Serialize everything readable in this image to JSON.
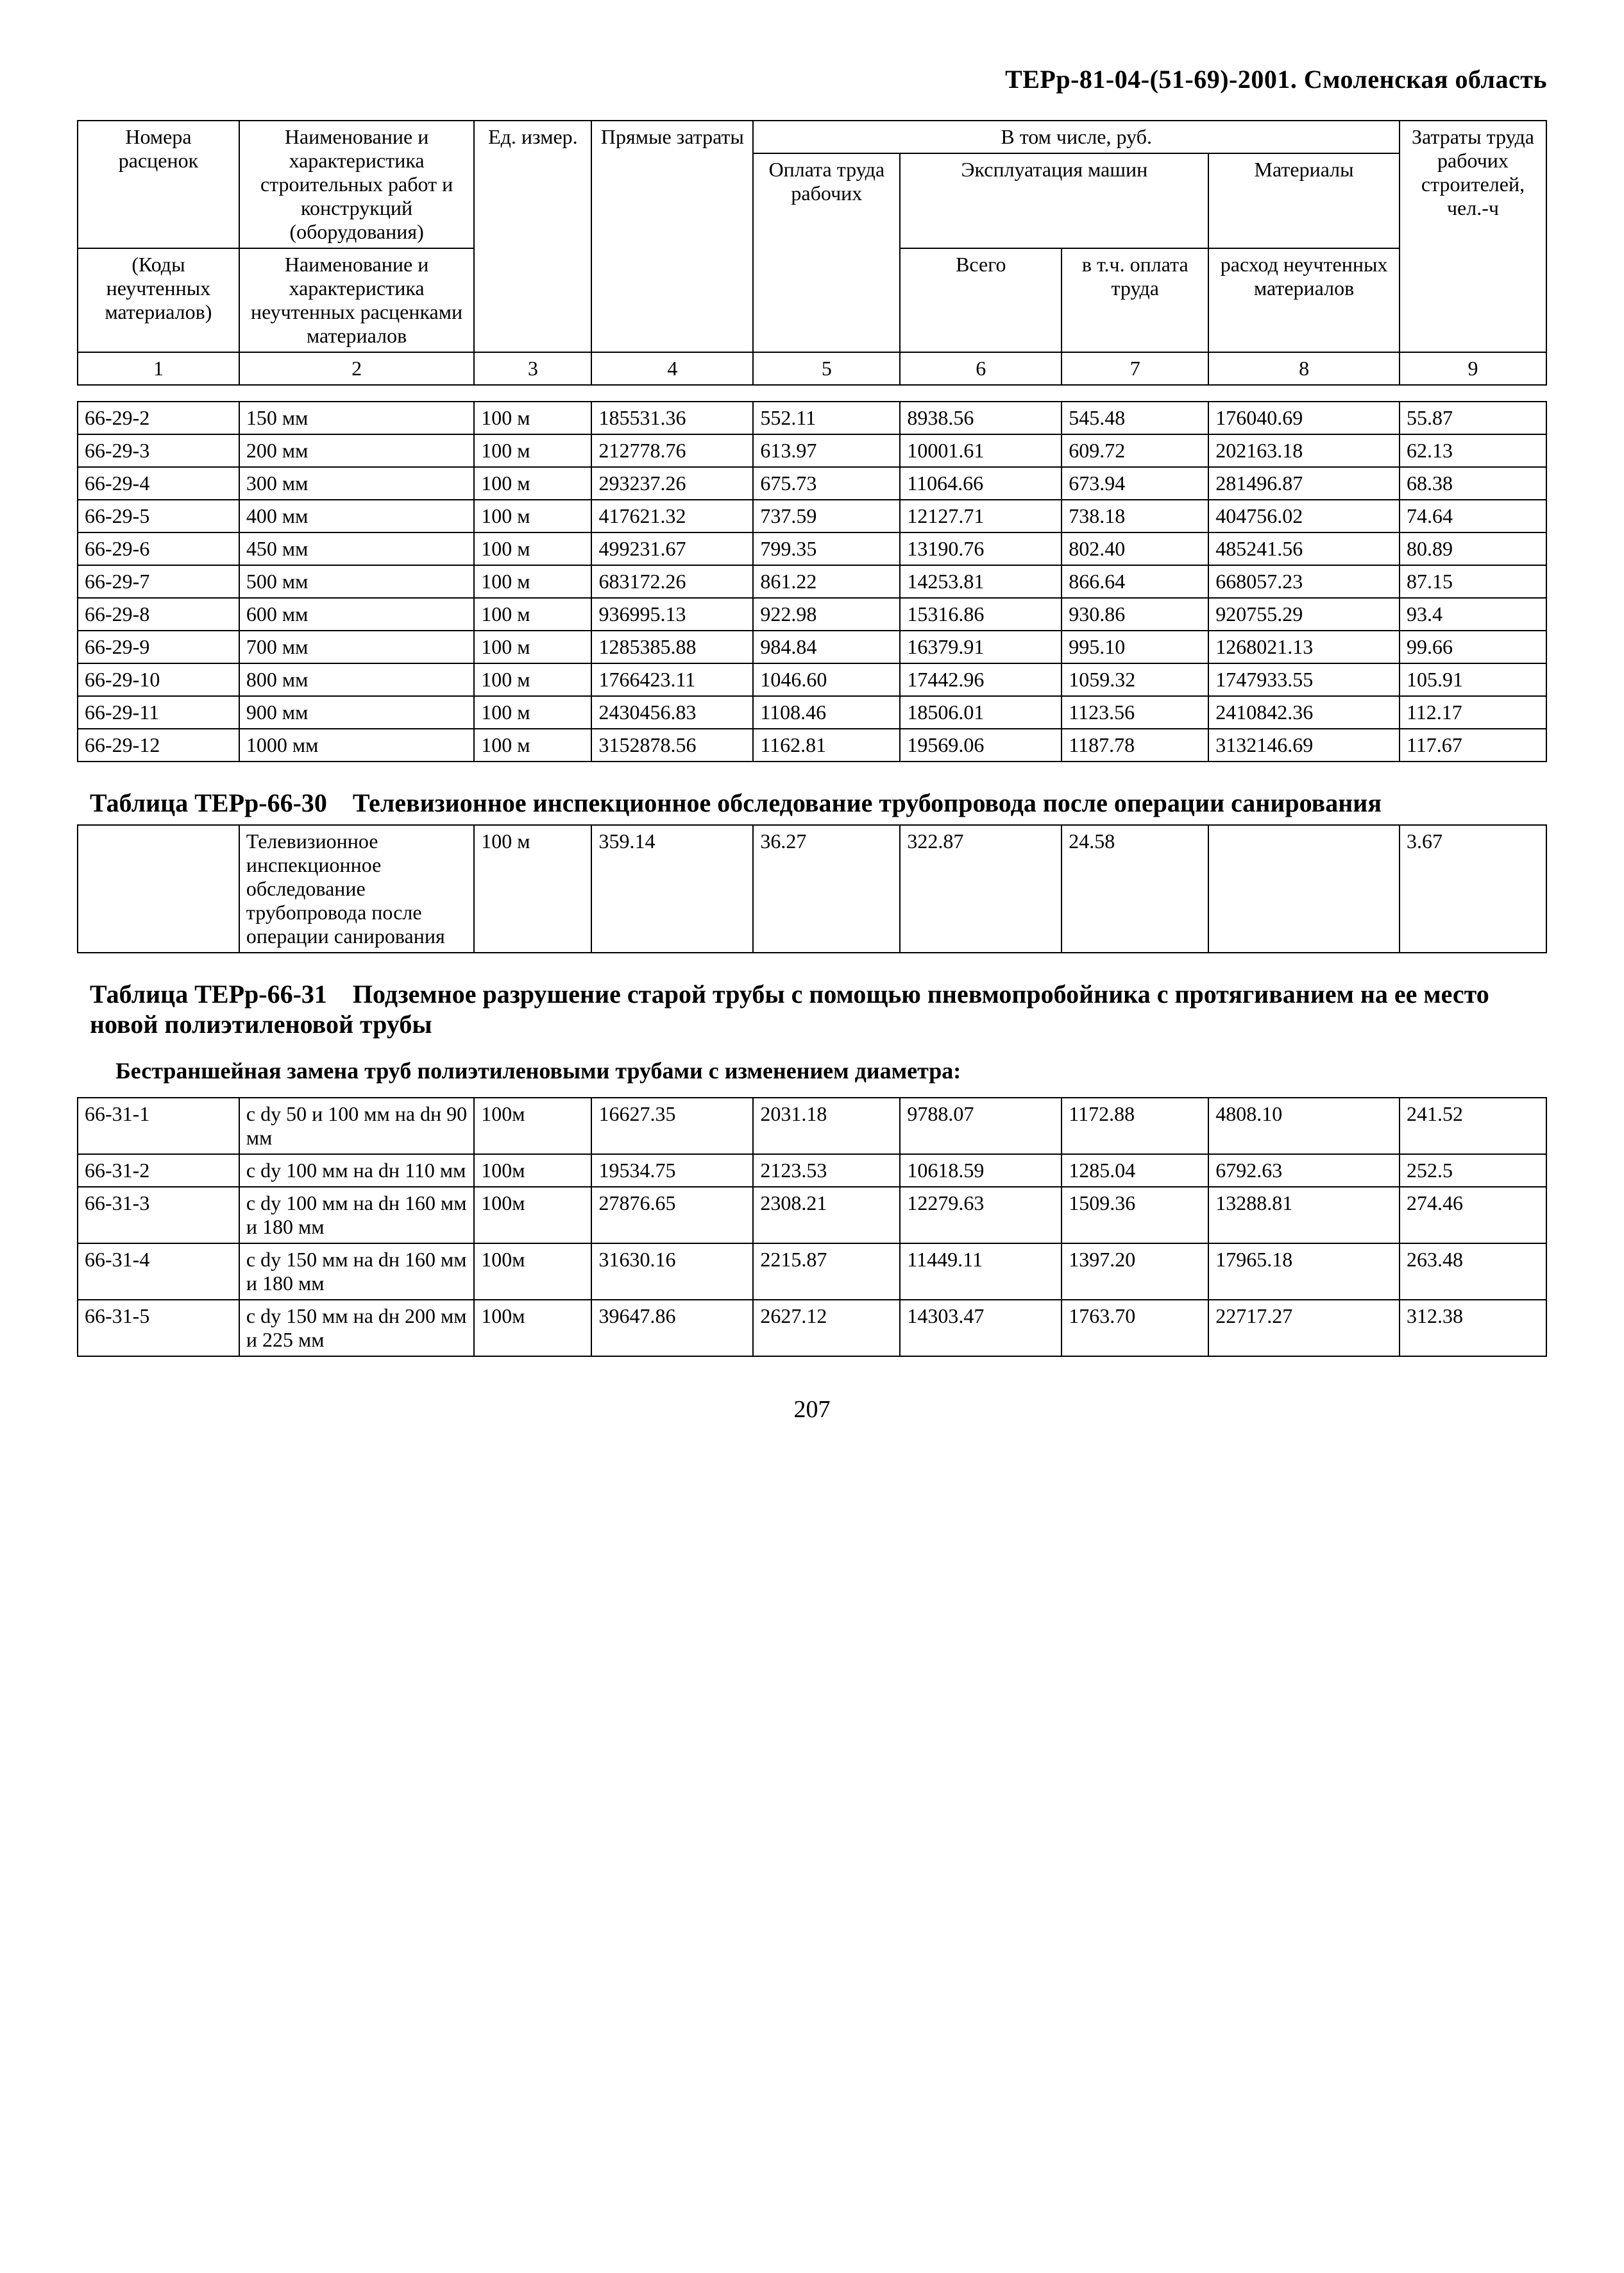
{
  "doc_title": "ТЕРр-81-04-(51-69)-2001. Смоленская область",
  "page_number": "207",
  "header_table": {
    "r1": {
      "col1": "Номера расценок",
      "col2": "Наименование и характеристика строительных работ и конструкций (оборудования)",
      "col3": "Ед. измер.",
      "col4": "Прямые затраты",
      "col5to8": "В том числе, руб.",
      "col9": "Затраты труда рабочих строителей, чел.-ч"
    },
    "r2": {
      "col5": "Оплата труда рабочих",
      "col6to7": "Эксплуатация машин",
      "col8": "Материалы"
    },
    "r3": {
      "col1": "(Коды неучтенных материалов)",
      "col2": "Наименование и характеристика неучтенных расценками материалов",
      "col6": "Всего",
      "col7": "в т.ч. оплата труда",
      "col8": "расход неучтенных материалов"
    },
    "nums": [
      "1",
      "2",
      "3",
      "4",
      "5",
      "6",
      "7",
      "8",
      "9"
    ]
  },
  "table29_rows": [
    {
      "code": "66-29-2",
      "name": "150 мм",
      "unit": "100 м",
      "c4": "185531.36",
      "c5": "552.11",
      "c6": "8938.56",
      "c7": "545.48",
      "c8": "176040.69",
      "c9": "55.87"
    },
    {
      "code": "66-29-3",
      "name": "200 мм",
      "unit": "100 м",
      "c4": "212778.76",
      "c5": "613.97",
      "c6": "10001.61",
      "c7": "609.72",
      "c8": "202163.18",
      "c9": "62.13"
    },
    {
      "code": "66-29-4",
      "name": "300 мм",
      "unit": "100 м",
      "c4": "293237.26",
      "c5": "675.73",
      "c6": "11064.66",
      "c7": "673.94",
      "c8": "281496.87",
      "c9": "68.38"
    },
    {
      "code": "66-29-5",
      "name": "400 мм",
      "unit": "100 м",
      "c4": "417621.32",
      "c5": "737.59",
      "c6": "12127.71",
      "c7": "738.18",
      "c8": "404756.02",
      "c9": "74.64"
    },
    {
      "code": "66-29-6",
      "name": "450 мм",
      "unit": "100 м",
      "c4": "499231.67",
      "c5": "799.35",
      "c6": "13190.76",
      "c7": "802.40",
      "c8": "485241.56",
      "c9": "80.89"
    },
    {
      "code": "66-29-7",
      "name": "500 мм",
      "unit": "100 м",
      "c4": "683172.26",
      "c5": "861.22",
      "c6": "14253.81",
      "c7": "866.64",
      "c8": "668057.23",
      "c9": "87.15"
    },
    {
      "code": "66-29-8",
      "name": "600 мм",
      "unit": "100 м",
      "c4": "936995.13",
      "c5": "922.98",
      "c6": "15316.86",
      "c7": "930.86",
      "c8": "920755.29",
      "c9": "93.4"
    },
    {
      "code": "66-29-9",
      "name": "700 мм",
      "unit": "100 м",
      "c4": "1285385.88",
      "c5": "984.84",
      "c6": "16379.91",
      "c7": "995.10",
      "c8": "1268021.13",
      "c9": "99.66"
    },
    {
      "code": "66-29-10",
      "name": "800 мм",
      "unit": "100 м",
      "c4": "1766423.11",
      "c5": "1046.60",
      "c6": "17442.96",
      "c7": "1059.32",
      "c8": "1747933.55",
      "c9": "105.91"
    },
    {
      "code": "66-29-11",
      "name": "900 мм",
      "unit": "100 м",
      "c4": "2430456.83",
      "c5": "1108.46",
      "c6": "18506.01",
      "c7": "1123.56",
      "c8": "2410842.36",
      "c9": "112.17"
    },
    {
      "code": "66-29-12",
      "name": "1000 мм",
      "unit": "100 м",
      "c4": "3152878.56",
      "c5": "1162.81",
      "c6": "19569.06",
      "c7": "1187.78",
      "c8": "3132146.69",
      "c9": "117.67"
    }
  ],
  "section30": {
    "title": "Таблица ТЕРр-66-30 Телевизионное инспекционное обследование трубопровода после операции санирования",
    "row": {
      "code": "",
      "name": "Телевизионное инспекционное обследование трубопровода после операции санирования",
      "unit": "100 м",
      "c4": "359.14",
      "c5": "36.27",
      "c6": "322.87",
      "c7": "24.58",
      "c8": "",
      "c9": "3.67"
    }
  },
  "section31": {
    "title": "Таблица ТЕРр-66-31 Подземное разрушение старой трубы с помощью пневмопробойника с протягиванием на ее место новой полиэтиленовой трубы",
    "intro": "Бестраншейная замена труб полиэтиленовыми трубами с изменением диаметра:",
    "rows": [
      {
        "code": "66-31-1",
        "name": "с dу 50 и 100 мм на dн 90 мм",
        "unit": "100м",
        "c4": "16627.35",
        "c5": "2031.18",
        "c6": "9788.07",
        "c7": "1172.88",
        "c8": "4808.10",
        "c9": "241.52"
      },
      {
        "code": "66-31-2",
        "name": "с dу 100 мм на dн 110 мм",
        "unit": "100м",
        "c4": "19534.75",
        "c5": "2123.53",
        "c6": "10618.59",
        "c7": "1285.04",
        "c8": "6792.63",
        "c9": "252.5"
      },
      {
        "code": "66-31-3",
        "name": "с dу 100 мм на dн 160 мм и 180 мм",
        "unit": "100м",
        "c4": "27876.65",
        "c5": "2308.21",
        "c6": "12279.63",
        "c7": "1509.36",
        "c8": "13288.81",
        "c9": "274.46"
      },
      {
        "code": "66-31-4",
        "name": "с dу 150 мм на dн 160 мм и 180 мм",
        "unit": "100м",
        "c4": "31630.16",
        "c5": "2215.87",
        "c6": "11449.11",
        "c7": "1397.20",
        "c8": "17965.18",
        "c9": "263.48"
      },
      {
        "code": "66-31-5",
        "name": "с dу 150 мм на dн 200 мм и 225 мм",
        "unit": "100м",
        "c4": "39647.86",
        "c5": "2627.12",
        "c6": "14303.47",
        "c7": "1763.70",
        "c8": "22717.27",
        "c9": "312.38"
      }
    ]
  }
}
